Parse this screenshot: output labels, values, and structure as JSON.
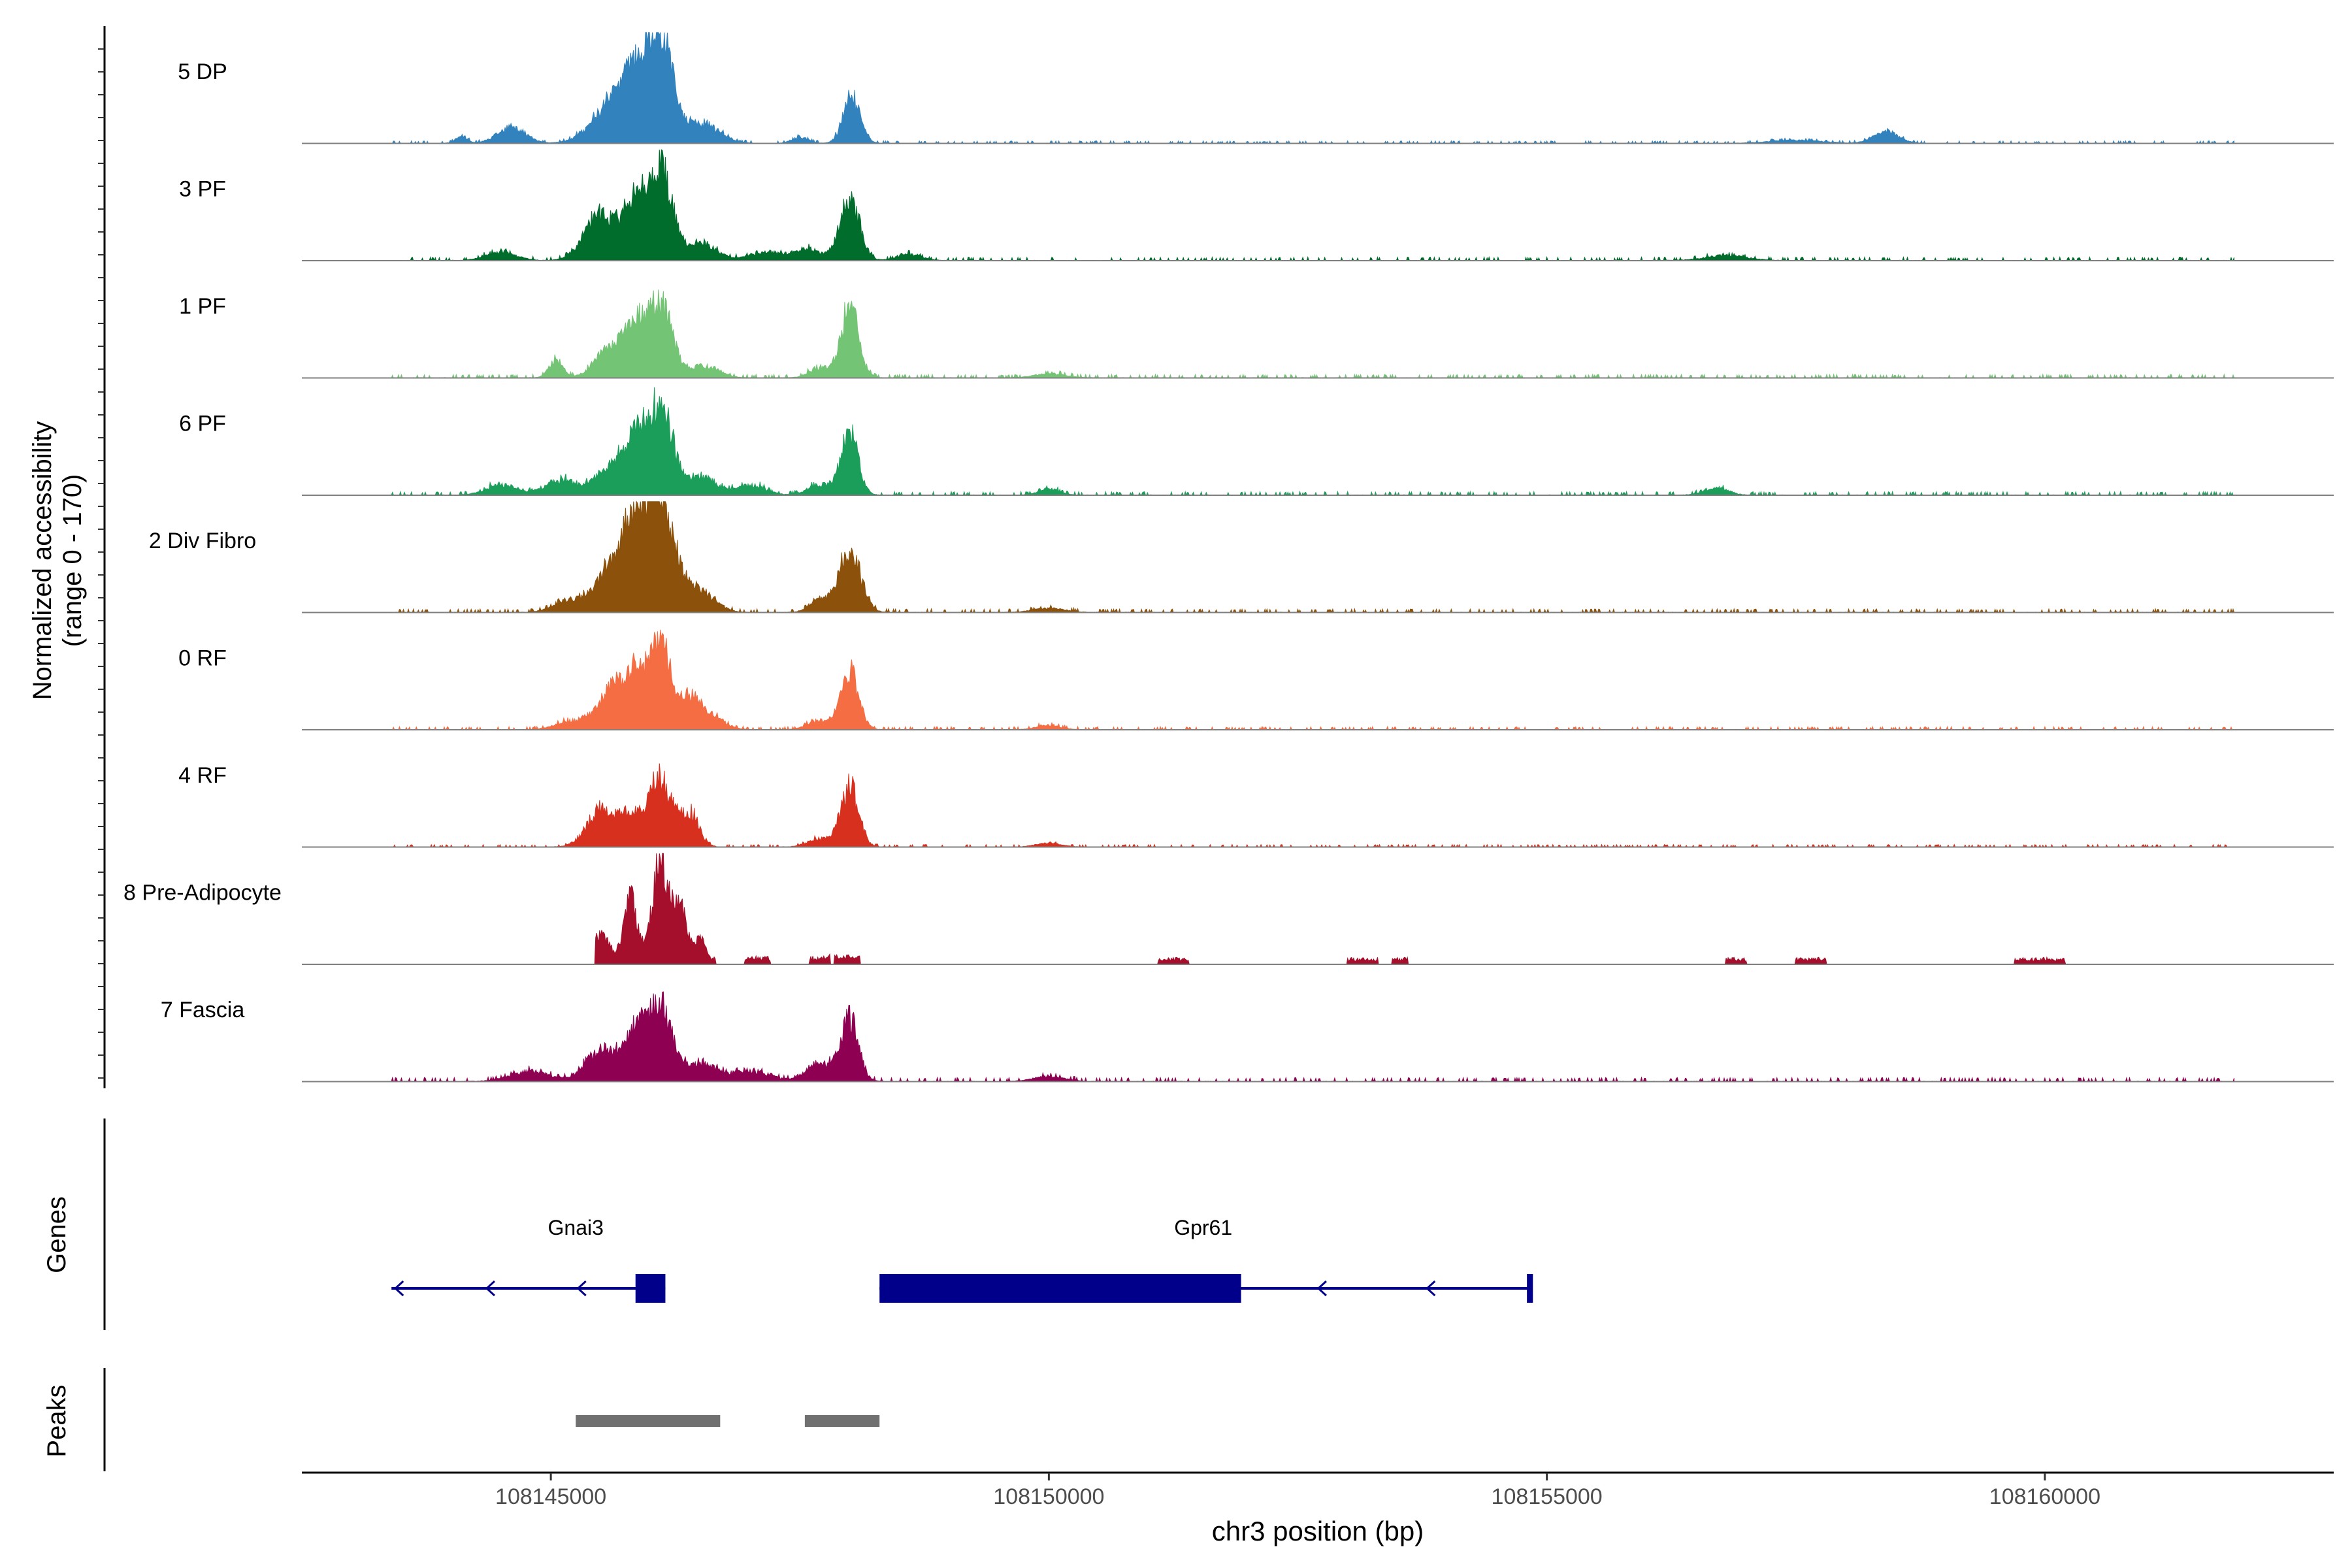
{
  "chart_data": {
    "type": "area",
    "title": "",
    "ylabel_line1": "Normalized accessibility",
    "ylabel_line2": "(range 0 - 170)",
    "xlabel": "chr3 position (bp)",
    "genes_label": "Genes",
    "peaks_label": "Peaks",
    "ylim": [
      0,
      170
    ],
    "xlim": [
      108142500,
      108162900
    ],
    "x_ticks": [
      108145000,
      108150000,
      108155000,
      108160000
    ],
    "x_tick_labels": [
      "108145000",
      "108150000",
      "108155000",
      "108160000"
    ],
    "signal_extent": [
      108143400,
      108161900
    ],
    "tracks": [
      {
        "name": "5 DP",
        "color": "#3182bd",
        "peaks": [
          [
            108144100,
            0.06,
            60
          ],
          [
            108144600,
            0.15,
            140
          ],
          [
            108145600,
            0.32,
            200
          ],
          [
            108145850,
            0.55,
            160
          ],
          [
            108146100,
            1.0,
            120
          ],
          [
            108146500,
            0.2,
            180
          ],
          [
            108147500,
            0.06,
            80
          ],
          [
            108148020,
            0.45,
            85
          ],
          [
            108158400,
            0.12,
            120
          ],
          [
            108157500,
            0.03,
            250
          ]
        ],
        "noise": 0.025,
        "seed": 11
      },
      {
        "name": "3 PF",
        "color": "#006d2c",
        "peaks": [
          [
            108144500,
            0.08,
            150
          ],
          [
            108145500,
            0.45,
            160
          ],
          [
            108145850,
            0.55,
            120
          ],
          [
            108146100,
            0.92,
            110
          ],
          [
            108146500,
            0.18,
            150
          ],
          [
            108147200,
            0.08,
            200
          ],
          [
            108147600,
            0.1,
            120
          ],
          [
            108148000,
            0.6,
            100
          ],
          [
            108148600,
            0.06,
            120
          ],
          [
            108156800,
            0.05,
            200
          ]
        ],
        "noise": 0.035,
        "seed": 23
      },
      {
        "name": "1 PF",
        "color": "#74c476",
        "peaks": [
          [
            108145050,
            0.18,
            70
          ],
          [
            108145600,
            0.28,
            150
          ],
          [
            108145850,
            0.45,
            120
          ],
          [
            108146100,
            0.7,
            120
          ],
          [
            108146550,
            0.12,
            140
          ],
          [
            108147700,
            0.1,
            100
          ],
          [
            108148000,
            0.68,
            90
          ],
          [
            108150000,
            0.04,
            150
          ]
        ],
        "noise": 0.035,
        "seed": 37
      },
      {
        "name": "6 PF",
        "color": "#1b9e5a",
        "peaks": [
          [
            108144500,
            0.1,
            150
          ],
          [
            108145100,
            0.15,
            160
          ],
          [
            108145600,
            0.28,
            150
          ],
          [
            108145850,
            0.48,
            110
          ],
          [
            108146100,
            0.88,
            120
          ],
          [
            108146500,
            0.18,
            150
          ],
          [
            108147000,
            0.1,
            150
          ],
          [
            108147700,
            0.1,
            120
          ],
          [
            108148000,
            0.62,
            85
          ],
          [
            108150000,
            0.06,
            100
          ],
          [
            108156700,
            0.07,
            120
          ]
        ],
        "noise": 0.035,
        "seed": 51
      },
      {
        "name": "2 Div Fibro",
        "color": "#8c510a",
        "peaks": [
          [
            108145200,
            0.12,
            160
          ],
          [
            108145600,
            0.4,
            150
          ],
          [
            108145850,
            0.72,
            130
          ],
          [
            108146100,
            1.05,
            150
          ],
          [
            108146500,
            0.2,
            150
          ],
          [
            108147700,
            0.12,
            100
          ],
          [
            108148000,
            0.6,
            110
          ],
          [
            108150000,
            0.04,
            150
          ]
        ],
        "noise": 0.035,
        "seed": 67
      },
      {
        "name": "0 RF",
        "color": "#f46d43",
        "peaks": [
          [
            108145200,
            0.08,
            150
          ],
          [
            108145600,
            0.38,
            140
          ],
          [
            108145850,
            0.5,
            110
          ],
          [
            108146100,
            0.85,
            110
          ],
          [
            108146400,
            0.3,
            90
          ],
          [
            108146600,
            0.14,
            130
          ],
          [
            108147700,
            0.08,
            120
          ],
          [
            108148000,
            0.57,
            90
          ],
          [
            108150000,
            0.04,
            120
          ]
        ],
        "noise": 0.03,
        "seed": 79
      },
      {
        "name": "4 RF",
        "color": "#d7301f",
        "peaks": [
          [
            108145500,
            0.35,
            140
          ],
          [
            108145800,
            0.28,
            120
          ],
          [
            108146100,
            0.68,
            120
          ],
          [
            108146400,
            0.32,
            90
          ],
          [
            108147700,
            0.08,
            120
          ],
          [
            108148000,
            0.6,
            90
          ],
          [
            108150000,
            0.04,
            120
          ]
        ],
        "noise": 0.025,
        "seed": 83
      },
      {
        "name": "8 Pre-Adipocyte",
        "color": "#a50f2b",
        "peaks": [
          [
            108145500,
            0.3,
            90
          ],
          [
            108145800,
            0.65,
            70
          ],
          [
            108146100,
            1.05,
            80
          ],
          [
            108146300,
            0.55,
            70
          ],
          [
            108146500,
            0.25,
            60
          ],
          [
            108147300,
            0.08,
            60
          ],
          [
            108147800,
            0.08,
            60
          ],
          [
            108148000,
            0.08,
            60
          ]
        ],
        "noise": 0.0,
        "seed": 97,
        "blocks": [
          [
            108145450,
            108146650,
            0.06
          ],
          [
            108146950,
            108147200,
            0.06
          ],
          [
            108147600,
            108147800,
            0.06
          ],
          [
            108147850,
            108148100,
            0.07
          ],
          [
            108151100,
            108151400,
            0.05
          ],
          [
            108153000,
            108153300,
            0.05
          ],
          [
            108153450,
            108153600,
            0.05
          ],
          [
            108156800,
            108157000,
            0.05
          ],
          [
            108157500,
            108157800,
            0.05
          ],
          [
            108159700,
            108160200,
            0.05
          ]
        ]
      },
      {
        "name": "7 Fascia",
        "color": "#8e0152",
        "peaks": [
          [
            108144800,
            0.1,
            200
          ],
          [
            108145500,
            0.3,
            150
          ],
          [
            108145850,
            0.48,
            120
          ],
          [
            108146100,
            0.72,
            120
          ],
          [
            108146500,
            0.18,
            150
          ],
          [
            108147000,
            0.1,
            200
          ],
          [
            108147700,
            0.18,
            130
          ],
          [
            108148000,
            0.6,
            90
          ],
          [
            108150000,
            0.05,
            150
          ]
        ],
        "noise": 0.04,
        "seed": 103
      }
    ],
    "genes": [
      {
        "name": "Gnai3",
        "start": 108143400,
        "end": 108146150,
        "strand": "-",
        "exons": [
          [
            108145850,
            108146150
          ]
        ],
        "label_x": 108145250
      },
      {
        "name": "Gpr61",
        "start": 108148300,
        "end": 108154850,
        "strand": "-",
        "exons": [
          [
            108148300,
            108151930
          ],
          [
            108154800,
            108154860
          ]
        ],
        "label_x": 108151550
      }
    ],
    "peaks": [
      [
        108145250,
        108146700
      ],
      [
        108147550,
        108148300
      ]
    ],
    "gene_color": "#00008b",
    "peak_color": "#707070"
  }
}
